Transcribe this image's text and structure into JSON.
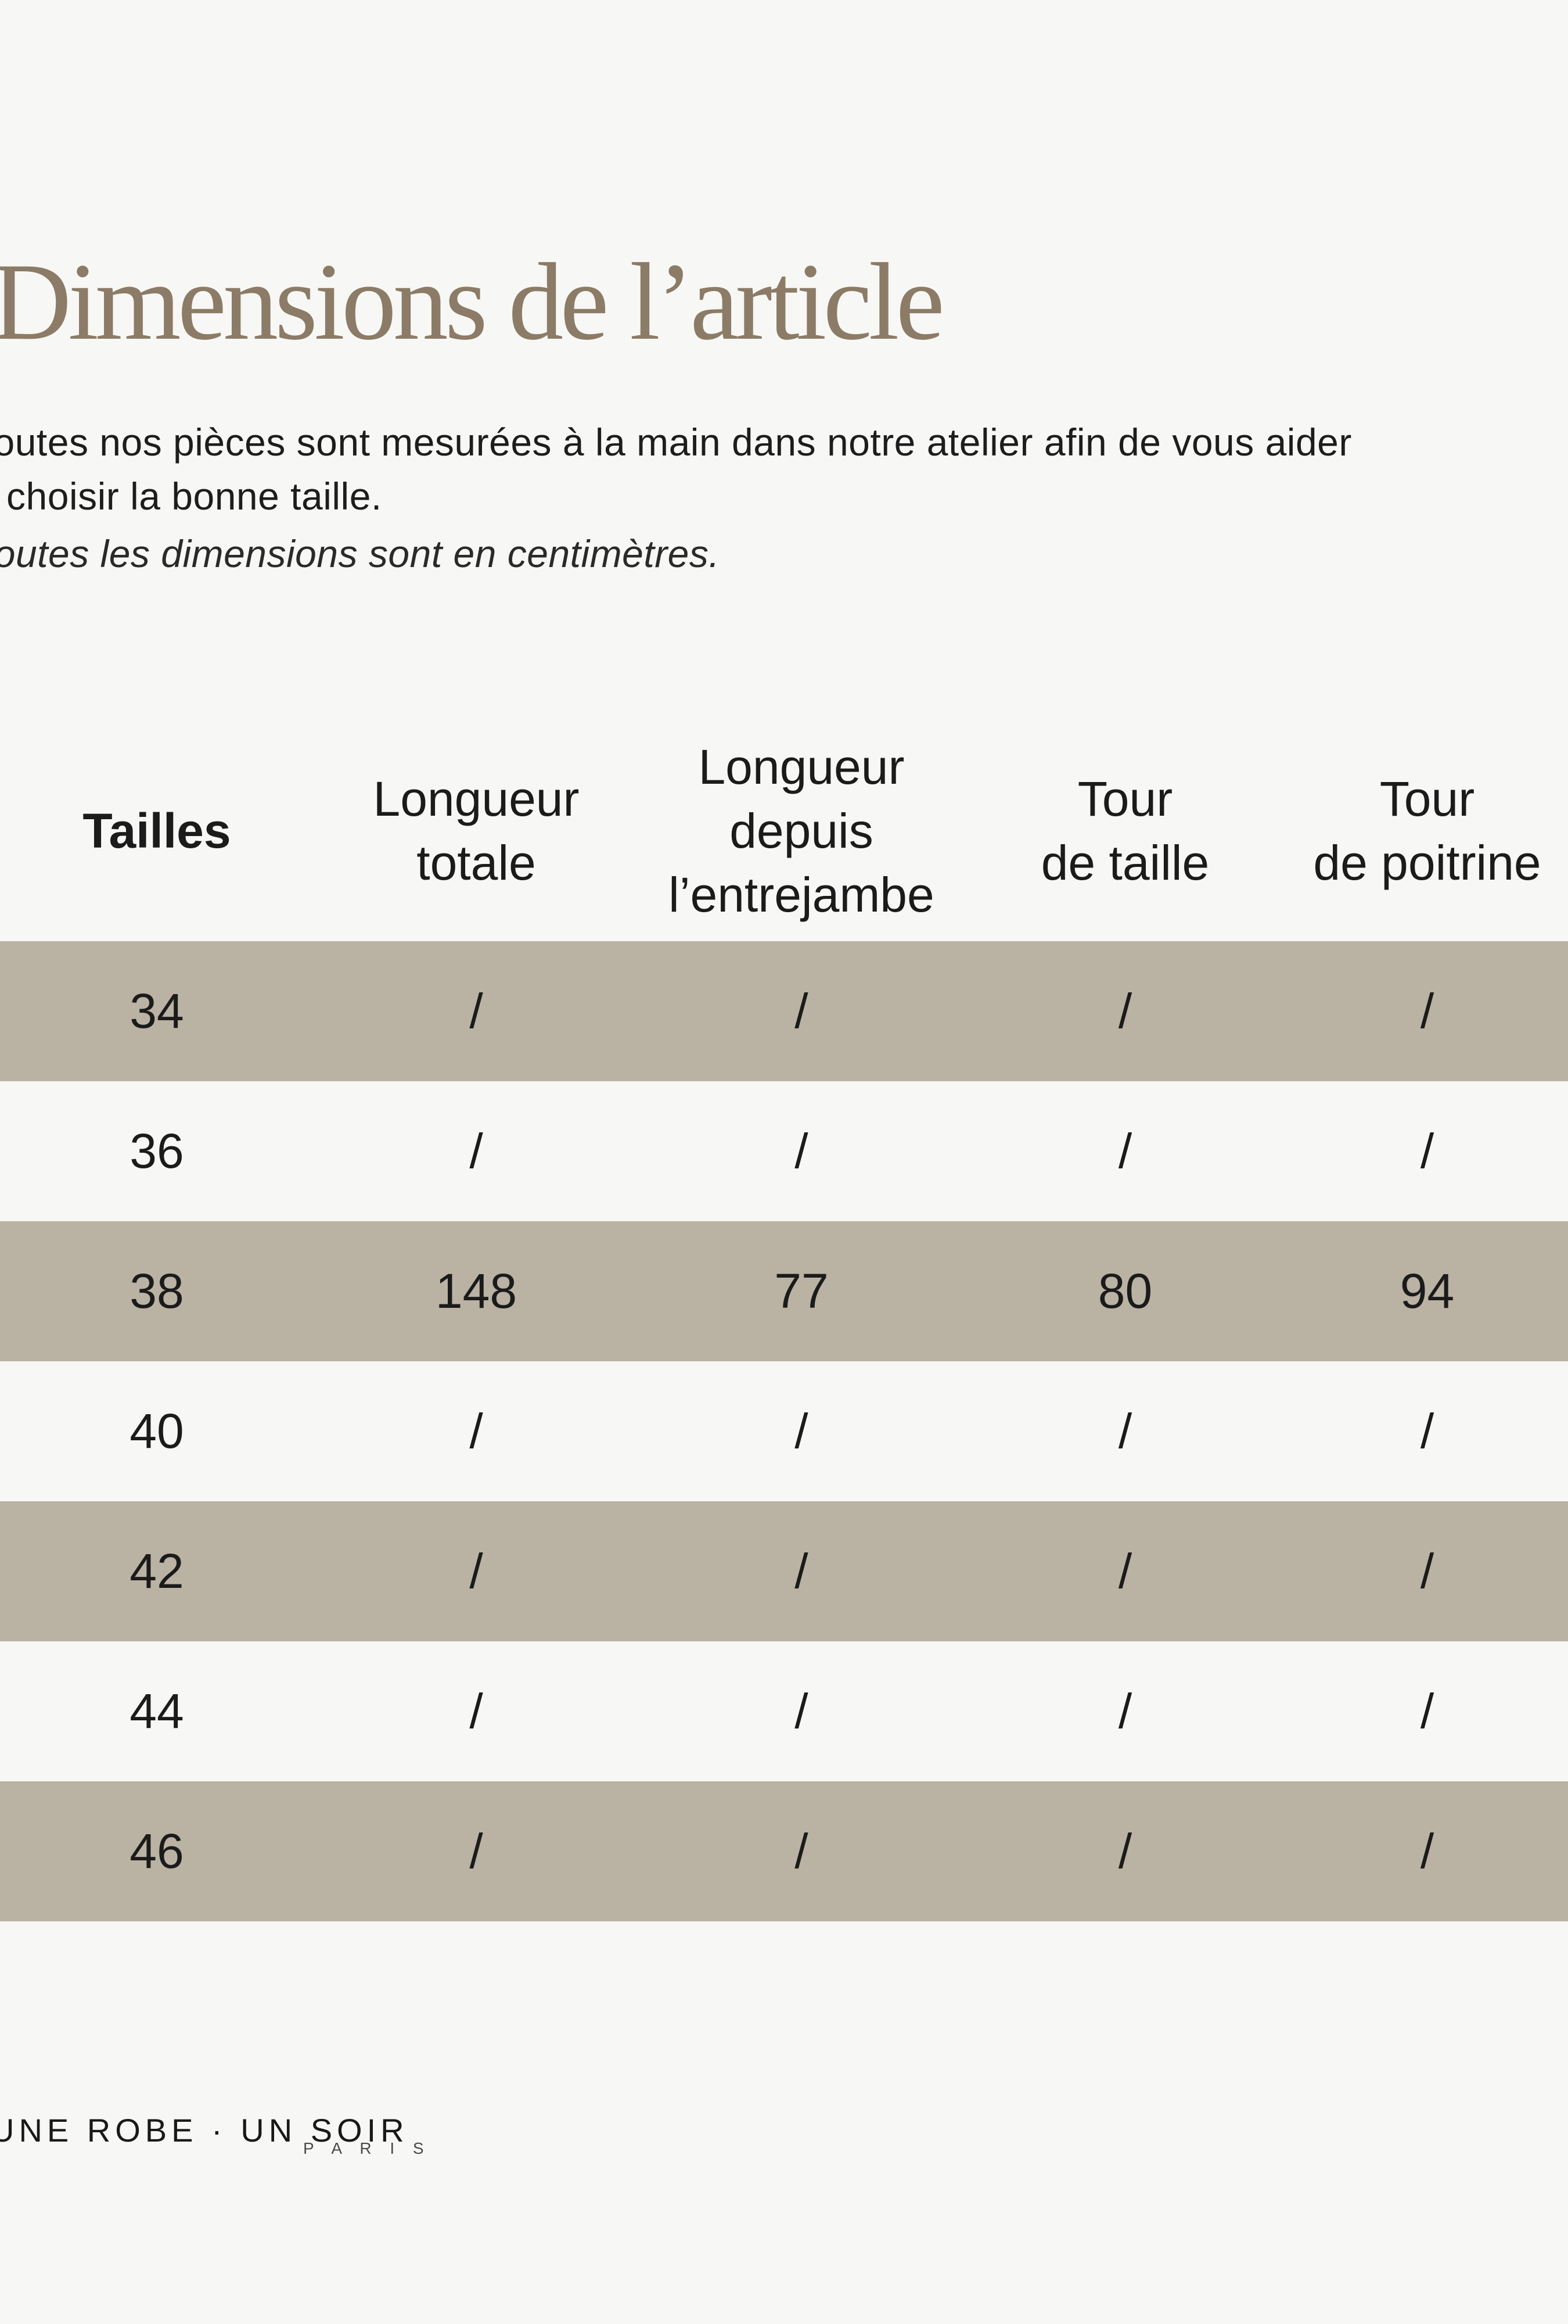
{
  "page": {
    "background_color": "#f7f7f5",
    "band_color": "#bab2a3",
    "title_color": "#8c7b66",
    "text_color": "#1b1b1b"
  },
  "title": {
    "text": "Dimensions de l’article"
  },
  "intro": {
    "line1": "Toutes nos pièces sont mesurées à la main dans notre atelier afin de vous aider",
    "line2": "à choisir la bonne taille.",
    "note": "Toutes les dimensions sont en centimètres."
  },
  "table": {
    "headers": [
      {
        "lines": [
          "Tailles",
          "",
          ""
        ]
      },
      {
        "lines": [
          "Longueur",
          "totale",
          ""
        ]
      },
      {
        "lines": [
          "Longueur",
          "depuis",
          "l’entrejambe"
        ]
      },
      {
        "lines": [
          "Tour",
          "de taille",
          ""
        ]
      },
      {
        "lines": [
          "Tour",
          "de poitrine",
          ""
        ]
      }
    ],
    "rows": [
      {
        "size": "34",
        "values": [
          "/",
          "/",
          "/",
          "/"
        ]
      },
      {
        "size": "36",
        "values": [
          "/",
          "/",
          "/",
          "/"
        ]
      },
      {
        "size": "38",
        "values": [
          "148",
          "77",
          "80",
          "94"
        ]
      },
      {
        "size": "40",
        "values": [
          "/",
          "/",
          "/",
          "/"
        ]
      },
      {
        "size": "42",
        "values": [
          "/",
          "/",
          "/",
          "/"
        ]
      },
      {
        "size": "44",
        "values": [
          "/",
          "/",
          "/",
          "/"
        ]
      },
      {
        "size": "46",
        "values": [
          "/",
          "/",
          "/",
          "/"
        ]
      }
    ]
  },
  "footer": {
    "brand": "UNE ROBE · UN SOIR",
    "brand_sub": "P A R I S"
  }
}
